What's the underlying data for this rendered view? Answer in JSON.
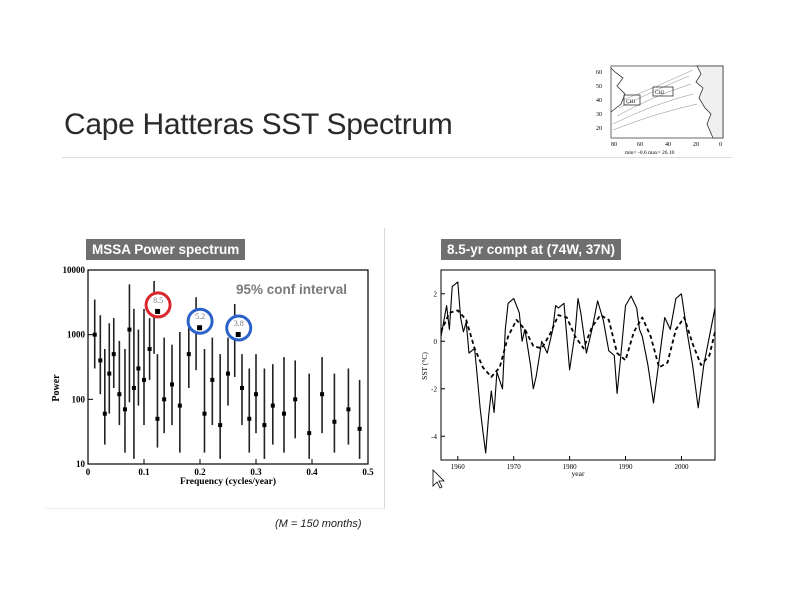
{
  "slide": {
    "title": "Cape Hatteras SST Spectrum",
    "footnote": "(M = 150 months)"
  },
  "inset_map": {
    "y_ticks": [
      "60",
      "50",
      "40",
      "30",
      "20"
    ],
    "x_ticks": [
      "80",
      "60",
      "40",
      "20",
      "0"
    ],
    "caption": "min= -0.6 max= 26.10",
    "box_labels": [
      "CH1",
      "CH2"
    ]
  },
  "colors": {
    "label_bg": "#6f6f6f",
    "conf_text": "#7a7a7a",
    "red_circle": "#d9262a",
    "blue_circle": "#2b62c9"
  },
  "chart_data": [
    {
      "type": "scatter",
      "title": "MSSA Power spectrum",
      "annotation": "95% conf interval",
      "xlabel": "Frequency (cycles/year)",
      "ylabel": "Power",
      "xlim": [
        0,
        0.5
      ],
      "ylim": [
        10,
        10000
      ],
      "yscale": "log",
      "x_ticks": [
        "0",
        "0.1",
        "0.2",
        "0.3",
        "0.4",
        "0.5"
      ],
      "y_ticks": [
        "10",
        "100",
        "1000",
        "10000"
      ],
      "highlighted_peaks": [
        {
          "label": "8.5",
          "x": 0.118,
          "y": 2500,
          "color": "red"
        },
        {
          "label": "5.2",
          "x": 0.193,
          "y": 1400,
          "color": "blue"
        },
        {
          "label": "3.8",
          "x": 0.262,
          "y": 1100,
          "color": "blue"
        }
      ],
      "bars": [
        {
          "x": 0.012,
          "lo": 300,
          "hi": 3500,
          "p": 1000
        },
        {
          "x": 0.022,
          "lo": 120,
          "hi": 2000,
          "p": 400
        },
        {
          "x": 0.03,
          "lo": 20,
          "hi": 600,
          "p": 60
        },
        {
          "x": 0.038,
          "lo": 60,
          "hi": 1500,
          "p": 250
        },
        {
          "x": 0.046,
          "lo": 150,
          "hi": 1800,
          "p": 500
        },
        {
          "x": 0.056,
          "lo": 40,
          "hi": 800,
          "p": 120
        },
        {
          "x": 0.066,
          "lo": 15,
          "hi": 600,
          "p": 70
        },
        {
          "x": 0.074,
          "lo": 90,
          "hi": 6000,
          "p": 1200
        },
        {
          "x": 0.082,
          "lo": 12,
          "hi": 2500,
          "p": 150
        },
        {
          "x": 0.09,
          "lo": 80,
          "hi": 1200,
          "p": 300
        },
        {
          "x": 0.1,
          "lo": 40,
          "hi": 2500,
          "p": 200
        },
        {
          "x": 0.11,
          "lo": 200,
          "hi": 1800,
          "p": 600
        },
        {
          "x": 0.124,
          "lo": 18,
          "hi": 500,
          "p": 50
        },
        {
          "x": 0.136,
          "lo": 30,
          "hi": 900,
          "p": 100
        },
        {
          "x": 0.15,
          "lo": 40,
          "hi": 700,
          "p": 170
        },
        {
          "x": 0.164,
          "lo": 15,
          "hi": 1100,
          "p": 80
        },
        {
          "x": 0.18,
          "lo": 150,
          "hi": 1700,
          "p": 500
        },
        {
          "x": 0.208,
          "lo": 15,
          "hi": 600,
          "p": 60
        },
        {
          "x": 0.222,
          "lo": 40,
          "hi": 900,
          "p": 200
        },
        {
          "x": 0.236,
          "lo": 12,
          "hi": 500,
          "p": 40
        },
        {
          "x": 0.25,
          "lo": 80,
          "hi": 900,
          "p": 250
        },
        {
          "x": 0.275,
          "lo": 40,
          "hi": 500,
          "p": 150
        },
        {
          "x": 0.288,
          "lo": 15,
          "hi": 300,
          "p": 50
        },
        {
          "x": 0.3,
          "lo": 30,
          "hi": 500,
          "p": 120
        },
        {
          "x": 0.315,
          "lo": 12,
          "hi": 300,
          "p": 40
        },
        {
          "x": 0.33,
          "lo": 20,
          "hi": 350,
          "p": 80
        },
        {
          "x": 0.35,
          "lo": 15,
          "hi": 450,
          "p": 60
        },
        {
          "x": 0.37,
          "lo": 25,
          "hi": 400,
          "p": 100
        },
        {
          "x": 0.395,
          "lo": 12,
          "hi": 250,
          "p": 30
        },
        {
          "x": 0.418,
          "lo": 30,
          "hi": 450,
          "p": 120
        },
        {
          "x": 0.44,
          "lo": 15,
          "hi": 250,
          "p": 45
        },
        {
          "x": 0.465,
          "lo": 20,
          "hi": 300,
          "p": 70
        },
        {
          "x": 0.485,
          "lo": 12,
          "hi": 200,
          "p": 35
        }
      ]
    },
    {
      "type": "line",
      "title": "8.5-yr compt at (74W, 37N)",
      "xlabel": "year",
      "ylabel": "SST (°C)",
      "xlim": [
        1957,
        2006
      ],
      "ylim": [
        -5,
        3
      ],
      "x_ticks": [
        "1960",
        "1970",
        "1980",
        "1990",
        "2000"
      ],
      "y_ticks": [
        "2",
        "0",
        "-2",
        "-4"
      ],
      "series": [
        {
          "style": "solid",
          "x": [
            1957,
            1958,
            1958.5,
            1959,
            1960,
            1960.5,
            1961,
            1961.5,
            1962,
            1963,
            1963.5,
            1964,
            1964.5,
            1965,
            1965.5,
            1966,
            1966.5,
            1967,
            1968,
            1968.5,
            1969,
            1970,
            1971,
            1971.5,
            1972,
            1973,
            1973.5,
            1974,
            1975,
            1976,
            1977,
            1977.5,
            1978,
            1979,
            1980,
            1981,
            1981.5,
            1982,
            1983,
            1984,
            1985,
            1986,
            1987,
            1988,
            1988.5,
            1989,
            1990,
            1991,
            1992,
            1992.5,
            1993,
            1994,
            1995,
            1996,
            1997,
            1998,
            1999,
            2000,
            2001,
            2002,
            2003,
            2004,
            2005,
            2006
          ],
          "y": [
            0.2,
            1.5,
            0.5,
            2.3,
            2.5,
            1.0,
            0.4,
            0.8,
            -0.5,
            -0.3,
            -1.5,
            -2.8,
            -3.8,
            -4.7,
            -3.2,
            -2.1,
            -3.0,
            -1.3,
            -2.0,
            0.5,
            1.6,
            1.8,
            1.2,
            0.0,
            0.5,
            -1.0,
            -2.0,
            -1.5,
            0.0,
            -0.5,
            0.5,
            1.5,
            1.4,
            1.6,
            -1.2,
            0.4,
            1.8,
            1.2,
            -0.5,
            0.5,
            1.7,
            0.9,
            -0.4,
            -0.6,
            -2.2,
            -1.0,
            1.5,
            1.9,
            1.4,
            0.5,
            0.2,
            -1.0,
            -2.6,
            -0.8,
            1.0,
            0.5,
            1.8,
            2.0,
            0.4,
            -1.0,
            -2.8,
            -1.0,
            0.2,
            1.4
          ]
        },
        {
          "style": "dashed",
          "x": [
            1957,
            1958.5,
            1960,
            1961.5,
            1963,
            1964.5,
            1966,
            1967.5,
            1969,
            1970.5,
            1972,
            1973.5,
            1975,
            1976.5,
            1978,
            1979.5,
            1981,
            1982.5,
            1984,
            1985.5,
            1987,
            1988.5,
            1990,
            1991.5,
            1993,
            1994.5,
            1996,
            1997.5,
            1999,
            2000.5,
            2002,
            2003.5,
            2005,
            2006
          ],
          "y": [
            0.4,
            1.2,
            1.3,
            0.9,
            -0.3,
            -1.1,
            -1.5,
            -1.1,
            0.2,
            0.9,
            0.5,
            -0.2,
            -0.3,
            0.3,
            1.1,
            1.0,
            0.2,
            -0.3,
            0.6,
            1.1,
            0.9,
            -0.5,
            -0.8,
            0.4,
            1.0,
            0.2,
            -1.1,
            -0.9,
            0.5,
            1.0,
            -0.1,
            -1.0,
            -0.6,
            0.4
          ]
        }
      ]
    }
  ]
}
